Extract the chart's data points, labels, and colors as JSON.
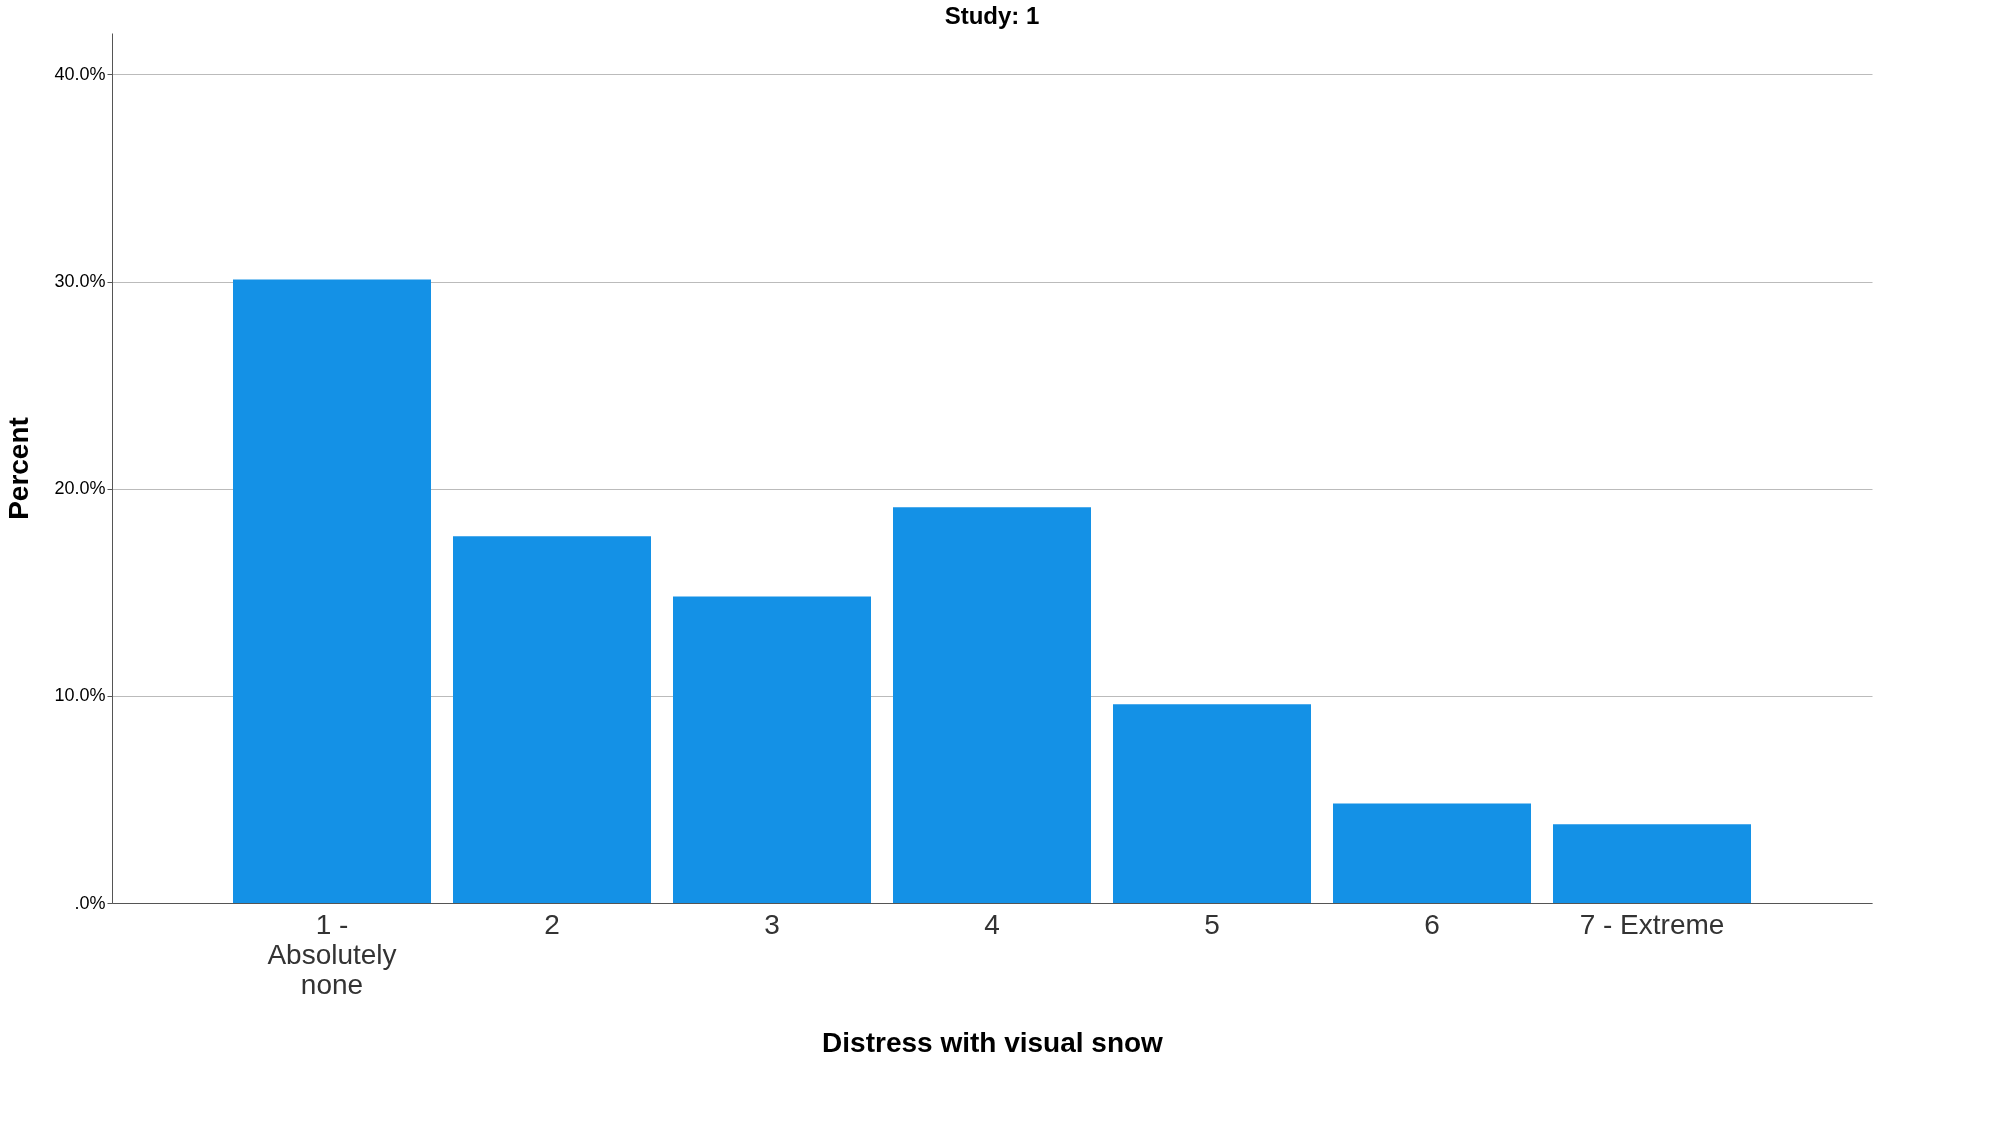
{
  "chart_data": {
    "type": "bar",
    "title": "Study: 1",
    "xlabel": "Distress with visual snow",
    "ylabel": "Percent",
    "categories": [
      "1 - Absolutely none",
      "2",
      "3",
      "4",
      "5",
      "6",
      "7 - Extreme"
    ],
    "values": [
      30.1,
      17.7,
      14.8,
      19.1,
      9.6,
      4.8,
      3.8
    ],
    "color": "#1491e6",
    "ylim": [
      0,
      42
    ],
    "yticks": [
      {
        "value": 0,
        "label": ".0%"
      },
      {
        "value": 10,
        "label": "10.0%"
      },
      {
        "value": 20,
        "label": "20.0%"
      },
      {
        "value": 30,
        "label": "30.0%"
      },
      {
        "value": 40,
        "label": "40.0%"
      }
    ],
    "grid": "y"
  }
}
